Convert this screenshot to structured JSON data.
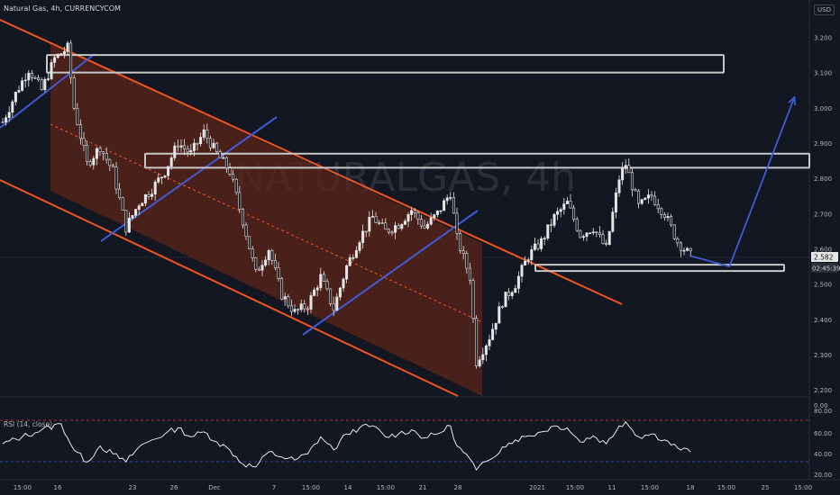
{
  "header": {
    "title": "Natural Gas, 4h, CURRENCYCOM",
    "currency": "USD"
  },
  "watermark": "NATURALGAS, 4h",
  "colors": {
    "background": "#131722",
    "up": "#e6e6e6",
    "channel": "#f0541f",
    "channel_fill": "#5c2418",
    "trendline": "#3f5bd6",
    "box": "#c8c8c8",
    "rsi_line": "#e6e6e6",
    "rsi_upper": "#e0463f",
    "rsi_lower": "#3f5bd6"
  },
  "price_axis": {
    "ticks": [
      "3.200",
      "3.100",
      "3.000",
      "2.900",
      "2.800",
      "2.700",
      "2.600",
      "2.500",
      "2.400",
      "2.300",
      "2.200"
    ],
    "last_price": "2.582",
    "countdown": "02:45:39"
  },
  "rsi_axis": {
    "label": "RSI (14, close)",
    "ticks": [
      "0.00",
      "80.00",
      "60.00",
      "40.00",
      "20.00"
    ],
    "upper_band": 70,
    "lower_band": 30
  },
  "time_axis": {
    "ticks": [
      "15:00",
      "16",
      "23",
      "26",
      "Dec",
      "7",
      "15:00",
      "14",
      "15:00",
      "21",
      "28",
      "2021",
      "15:00",
      "11",
      "15:00",
      "18",
      "15:00",
      "25",
      "15:00"
    ]
  },
  "chart_data": {
    "type": "candlestick",
    "symbol": "Natural Gas",
    "interval": "4h",
    "exchange": "CURRENCYCOM",
    "ylim": [
      2.18,
      3.26
    ],
    "rsi_ylim": [
      15,
      85
    ],
    "series": [
      {
        "name": "price",
        "points": [
          {
            "x": 0,
            "y": 2.96
          },
          {
            "x": 2,
            "y": 3.04
          },
          {
            "x": 4,
            "y": 3.11
          },
          {
            "x": 6,
            "y": 3.05
          },
          {
            "x": 8,
            "y": 3.14
          },
          {
            "x": 10,
            "y": 3.17
          },
          {
            "x": 11,
            "y": 3.0
          },
          {
            "x": 13,
            "y": 2.84
          },
          {
            "x": 15,
            "y": 2.89
          },
          {
            "x": 17,
            "y": 2.82
          },
          {
            "x": 19,
            "y": 2.66
          },
          {
            "x": 21,
            "y": 2.73
          },
          {
            "x": 23,
            "y": 2.77
          },
          {
            "x": 25,
            "y": 2.82
          },
          {
            "x": 27,
            "y": 2.9
          },
          {
            "x": 29,
            "y": 2.87
          },
          {
            "x": 31,
            "y": 2.93
          },
          {
            "x": 33,
            "y": 2.87
          },
          {
            "x": 35,
            "y": 2.82
          },
          {
            "x": 37,
            "y": 2.68
          },
          {
            "x": 39,
            "y": 2.53
          },
          {
            "x": 41,
            "y": 2.6
          },
          {
            "x": 43,
            "y": 2.47
          },
          {
            "x": 45,
            "y": 2.42
          },
          {
            "x": 47,
            "y": 2.44
          },
          {
            "x": 49,
            "y": 2.52
          },
          {
            "x": 51,
            "y": 2.43
          },
          {
            "x": 53,
            "y": 2.55
          },
          {
            "x": 55,
            "y": 2.63
          },
          {
            "x": 57,
            "y": 2.69
          },
          {
            "x": 59,
            "y": 2.65
          },
          {
            "x": 61,
            "y": 2.67
          },
          {
            "x": 63,
            "y": 2.71
          },
          {
            "x": 65,
            "y": 2.66
          },
          {
            "x": 67,
            "y": 2.7
          },
          {
            "x": 69,
            "y": 2.76
          },
          {
            "x": 70,
            "y": 2.63
          },
          {
            "x": 72,
            "y": 2.52
          },
          {
            "x": 73,
            "y": 2.28
          },
          {
            "x": 75,
            "y": 2.35
          },
          {
            "x": 77,
            "y": 2.45
          },
          {
            "x": 79,
            "y": 2.5
          },
          {
            "x": 81,
            "y": 2.58
          },
          {
            "x": 83,
            "y": 2.62
          },
          {
            "x": 85,
            "y": 2.69
          },
          {
            "x": 87,
            "y": 2.73
          },
          {
            "x": 89,
            "y": 2.64
          },
          {
            "x": 91,
            "y": 2.66
          },
          {
            "x": 93,
            "y": 2.6
          },
          {
            "x": 95,
            "y": 2.8
          },
          {
            "x": 96,
            "y": 2.84
          },
          {
            "x": 98,
            "y": 2.72
          },
          {
            "x": 100,
            "y": 2.75
          },
          {
            "x": 102,
            "y": 2.7
          },
          {
            "x": 104,
            "y": 2.62
          },
          {
            "x": 106,
            "y": 2.58
          }
        ]
      },
      {
        "name": "rsi",
        "points": [
          {
            "x": 0,
            "y": 48
          },
          {
            "x": 3,
            "y": 55
          },
          {
            "x": 6,
            "y": 62
          },
          {
            "x": 9,
            "y": 68
          },
          {
            "x": 11,
            "y": 42
          },
          {
            "x": 13,
            "y": 30
          },
          {
            "x": 15,
            "y": 46
          },
          {
            "x": 17,
            "y": 38
          },
          {
            "x": 19,
            "y": 30
          },
          {
            "x": 21,
            "y": 45
          },
          {
            "x": 23,
            "y": 52
          },
          {
            "x": 25,
            "y": 58
          },
          {
            "x": 27,
            "y": 64
          },
          {
            "x": 29,
            "y": 55
          },
          {
            "x": 31,
            "y": 60
          },
          {
            "x": 33,
            "y": 50
          },
          {
            "x": 35,
            "y": 42
          },
          {
            "x": 37,
            "y": 28
          },
          {
            "x": 39,
            "y": 25
          },
          {
            "x": 41,
            "y": 40
          },
          {
            "x": 43,
            "y": 35
          },
          {
            "x": 45,
            "y": 32
          },
          {
            "x": 47,
            "y": 38
          },
          {
            "x": 49,
            "y": 55
          },
          {
            "x": 51,
            "y": 42
          },
          {
            "x": 53,
            "y": 58
          },
          {
            "x": 55,
            "y": 64
          },
          {
            "x": 57,
            "y": 66
          },
          {
            "x": 59,
            "y": 55
          },
          {
            "x": 61,
            "y": 58
          },
          {
            "x": 63,
            "y": 62
          },
          {
            "x": 65,
            "y": 54
          },
          {
            "x": 67,
            "y": 58
          },
          {
            "x": 69,
            "y": 66
          },
          {
            "x": 70,
            "y": 46
          },
          {
            "x": 72,
            "y": 33
          },
          {
            "x": 73,
            "y": 22
          },
          {
            "x": 75,
            "y": 32
          },
          {
            "x": 77,
            "y": 45
          },
          {
            "x": 79,
            "y": 52
          },
          {
            "x": 81,
            "y": 56
          },
          {
            "x": 83,
            "y": 60
          },
          {
            "x": 85,
            "y": 66
          },
          {
            "x": 87,
            "y": 64
          },
          {
            "x": 89,
            "y": 50
          },
          {
            "x": 91,
            "y": 56
          },
          {
            "x": 93,
            "y": 48
          },
          {
            "x": 95,
            "y": 66
          },
          {
            "x": 96,
            "y": 70
          },
          {
            "x": 98,
            "y": 55
          },
          {
            "x": 100,
            "y": 58
          },
          {
            "x": 102,
            "y": 52
          },
          {
            "x": 104,
            "y": 44
          },
          {
            "x": 106,
            "y": 40
          }
        ]
      }
    ],
    "horizontal_zones": [
      {
        "from": 3.1,
        "to": 3.15
      },
      {
        "from": 2.83,
        "to": 2.87
      },
      {
        "from": 2.54,
        "to": 2.555
      }
    ],
    "projection": [
      {
        "x": 106,
        "y": 2.58
      },
      {
        "x": 112,
        "y": 2.55
      },
      {
        "x": 122,
        "y": 3.03
      }
    ]
  }
}
